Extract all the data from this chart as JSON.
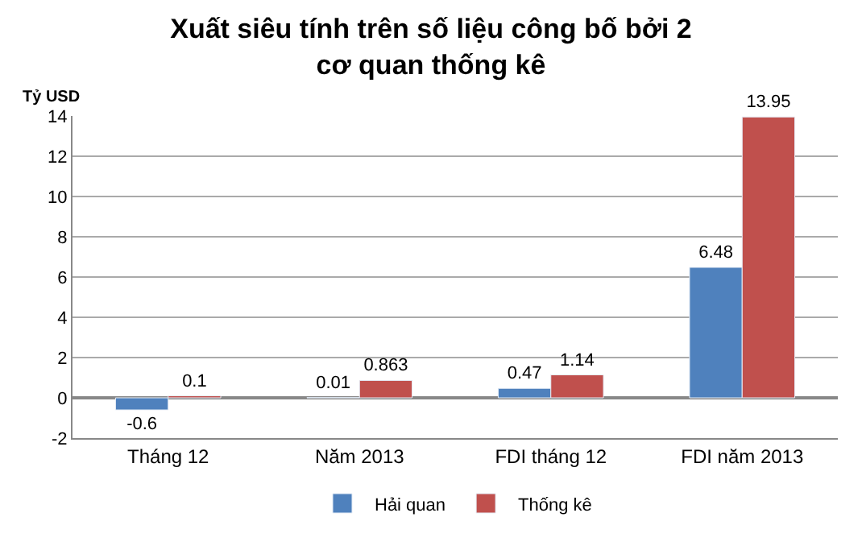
{
  "chart_data": {
    "type": "bar",
    "title": "Xuất siêu tính trên số liệu công bố bởi 2\ncơ quan thống kê",
    "ylabel": "Tỷ USD",
    "categories": [
      "Tháng 12",
      "Năm 2013",
      "FDI tháng 12",
      "FDI năm 2013"
    ],
    "series": [
      {
        "name": "Hải quan",
        "color": "#4f81bd",
        "values": [
          -0.6,
          0.01,
          0.47,
          6.48
        ]
      },
      {
        "name": "Thống kê",
        "color": "#c0504d",
        "values": [
          0.1,
          0.863,
          1.14,
          13.95
        ]
      }
    ],
    "ylim": [
      -2,
      14
    ],
    "yticks": [
      -2,
      0,
      2,
      4,
      6,
      8,
      10,
      12,
      14
    ],
    "grid": "y",
    "legend": "bottom",
    "data_labels": true
  }
}
